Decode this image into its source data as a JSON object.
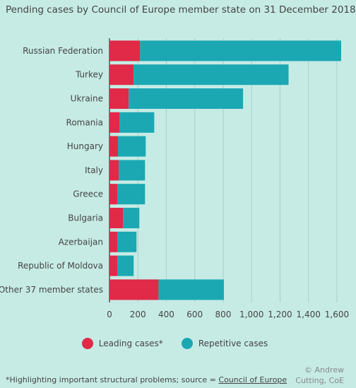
{
  "title": "Pending cases by Council of Europe member state on 31 December 2018",
  "chart_data": {
    "type": "bar",
    "orientation": "horizontal",
    "stacked": true,
    "categories": [
      "Russian Federation",
      "Turkey",
      "Ukraine",
      "Romania",
      "Hungary",
      "Italy",
      "Greece",
      "Bulgaria",
      "Azerbaijan",
      "Republic of Moldova",
      "Other 37 member states"
    ],
    "series": [
      {
        "name": "Leading cases*",
        "color": "#e02a47",
        "values": [
          215,
          170,
          135,
          70,
          60,
          65,
          55,
          95,
          55,
          55,
          345
        ]
      },
      {
        "name": "Repetitive cases",
        "color": "#1ba8b3",
        "values": [
          1415,
          1090,
          805,
          245,
          195,
          185,
          195,
          115,
          135,
          115,
          460
        ]
      }
    ],
    "xlim": [
      0,
      1650
    ],
    "xticks": [
      0,
      200,
      400,
      600,
      800,
      1000,
      1200,
      1400,
      1600
    ],
    "xtick_labels": [
      "0",
      "200",
      "400",
      "600",
      "800",
      "1,000",
      "1,200",
      "1,400",
      "1,600"
    ],
    "grid": true,
    "legend": "bottom"
  },
  "legend": {
    "leading": "Leading cases*",
    "repetitive": "Repetitive cases"
  },
  "footnote": {
    "text": "*Highlighting important structural problems; source = ",
    "link": "Council of Europe"
  },
  "credit": {
    "line1": "© Andrew",
    "line2": "Cutting, CoE"
  }
}
